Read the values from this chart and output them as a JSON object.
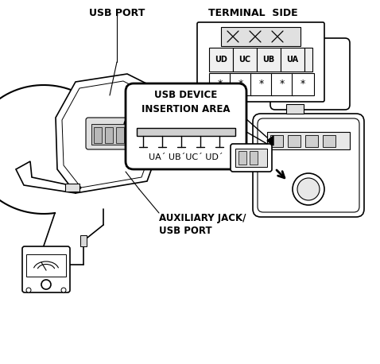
{
  "bg_color": "#ffffff",
  "line_color": "#000000",
  "label_usb_port": "USB PORT",
  "label_auxiliary": "AUXILIARY JACK/\nUSB PORT",
  "label_terminal": "TERMINAL  SIDE",
  "label_usb_device": "USB DEVICE\nINSERTION AREA",
  "label_ua": "UA´ UB´UC´ UD´",
  "label_terminals": [
    "UD",
    "UC",
    "UB",
    "UA"
  ],
  "label_stars": [
    "*",
    "*",
    "*",
    "*",
    "*"
  ],
  "figsize": [
    4.78,
    4.58
  ],
  "dpi": 100
}
